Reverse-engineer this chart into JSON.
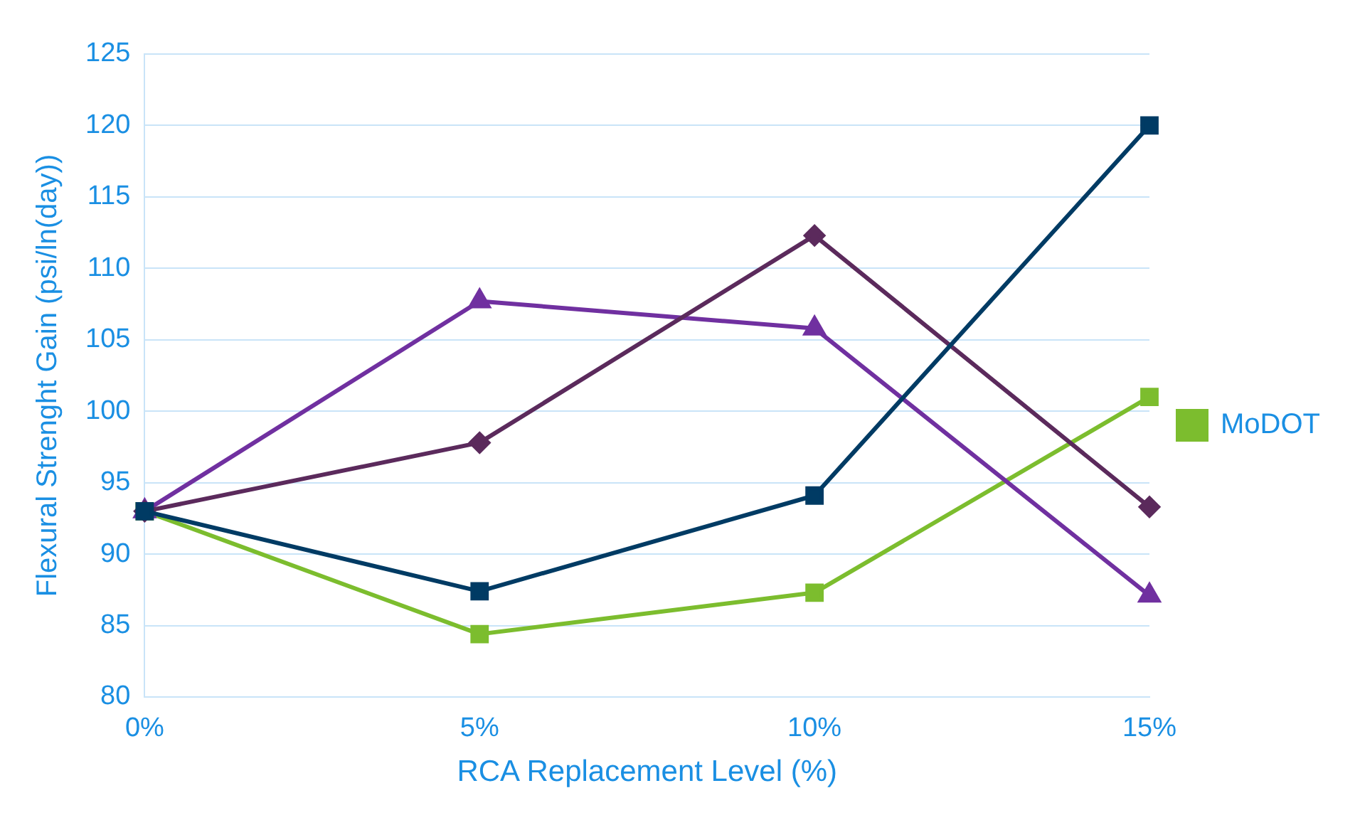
{
  "chart_data": {
    "type": "line",
    "xlabel": "RCA Replacement Level (%)",
    "ylabel": "Flexural Strenght Gain (psi/ln(day))",
    "categories": [
      "0%",
      "5%",
      "10%",
      "15%"
    ],
    "ylim": [
      80,
      125
    ],
    "yticks": [
      80,
      85,
      90,
      95,
      100,
      105,
      110,
      115,
      120,
      125
    ],
    "grid": "y",
    "legend": "right",
    "line_style": "solid",
    "series": [
      {
        "color": "#003b64",
        "marker": "square",
        "values": [
          93,
          87.4,
          94.1,
          120
        ]
      },
      {
        "color": "#5b2a5c",
        "marker": "diamond",
        "values": [
          93,
          97.8,
          112.3,
          93.3
        ]
      },
      {
        "color": "#7030a0",
        "marker": "triangle",
        "values": [
          93,
          107.7,
          105.8,
          87.1
        ]
      },
      {
        "name": "MoDOT",
        "color": "#7cbd2e",
        "marker": "square",
        "values": [
          93,
          84.4,
          87.3,
          101
        ]
      }
    ]
  }
}
